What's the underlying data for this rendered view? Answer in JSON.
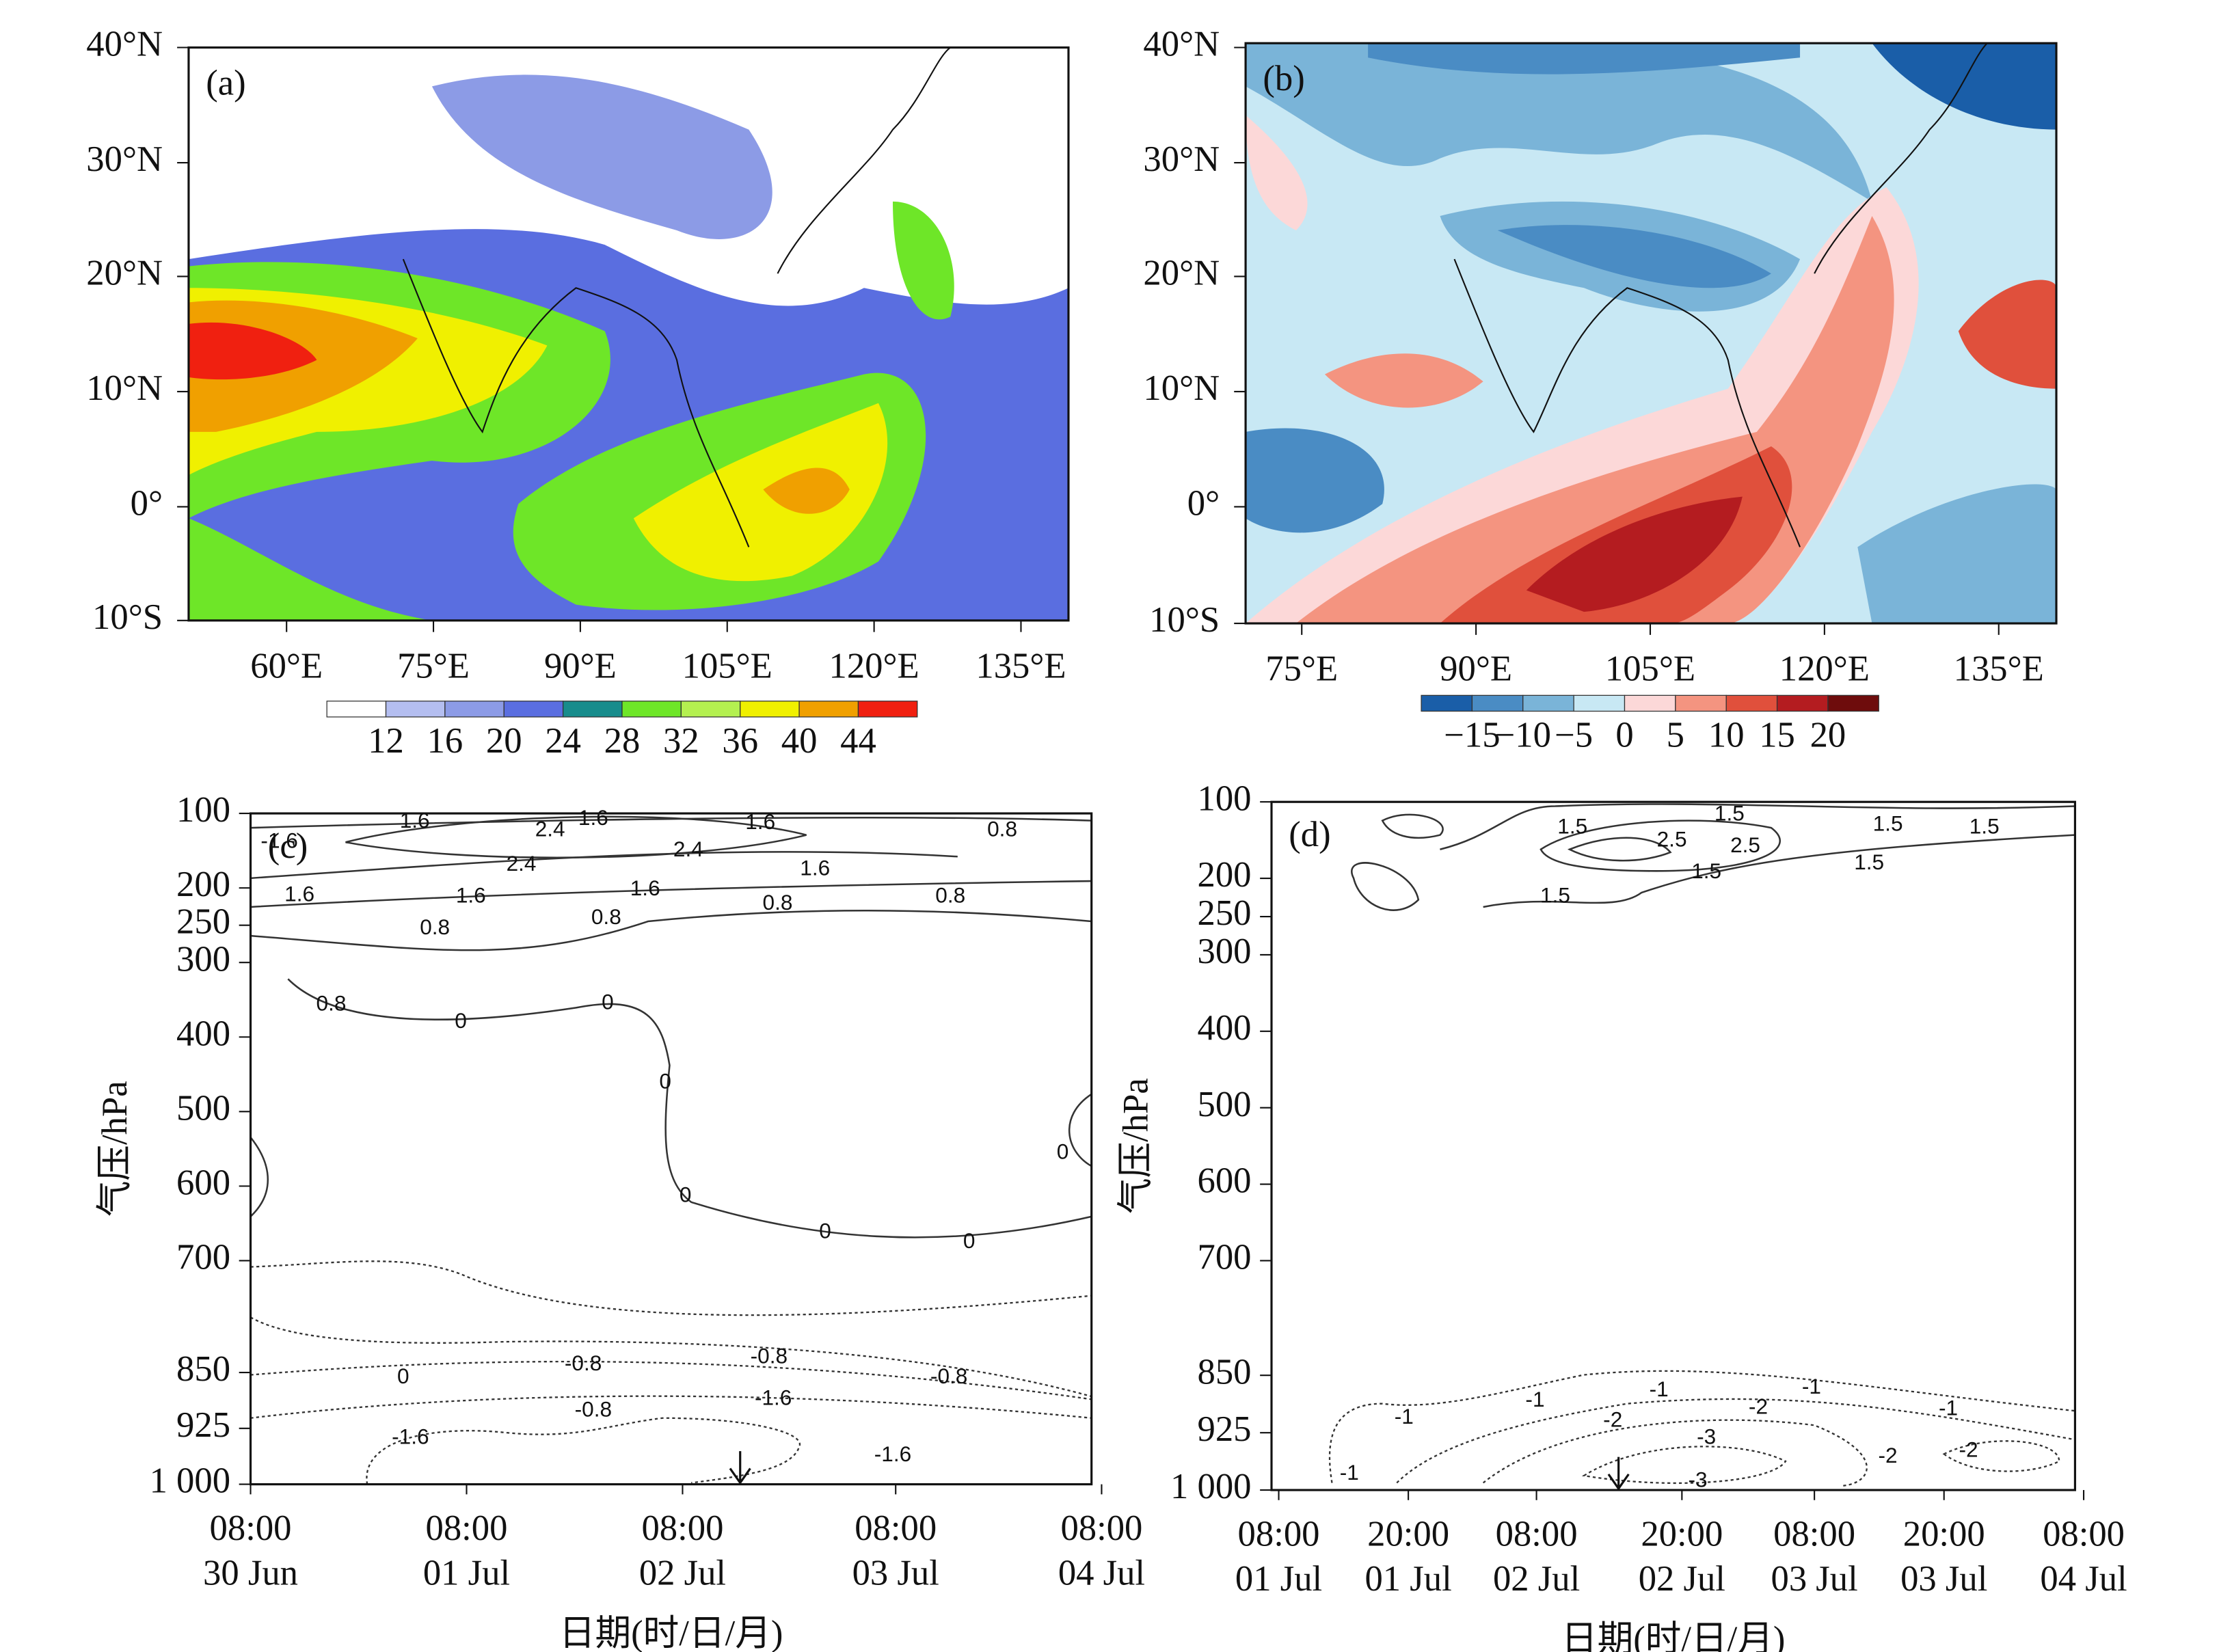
{
  "panels": [
    {
      "label": "(a)",
      "lat_ticks": [
        "40°N",
        "30°N",
        "20°N",
        "10°N",
        "0°",
        "10°S"
      ],
      "lon_ticks": [
        "60°E",
        "75°E",
        "90°E",
        "105°E",
        "120°E",
        "135°E"
      ],
      "colorbar": {
        "labels": [
          "12",
          "16",
          "20",
          "24",
          "28",
          "32",
          "36",
          "40",
          "44"
        ]
      }
    },
    {
      "label": "(b)",
      "lat_ticks": [
        "40°N",
        "30°N",
        "20°N",
        "10°N",
        "0°",
        "10°S"
      ],
      "lon_ticks": [
        "75°E",
        "90°E",
        "105°E",
        "120°E",
        "135°E"
      ],
      "colorbar": {
        "labels": [
          "−15",
          "−10",
          "−5",
          "0",
          "5",
          "10",
          "15",
          "20"
        ]
      }
    },
    {
      "label": "(c)",
      "y_label": "气压/hPa",
      "x_label": "日期(时/日/月)",
      "yticks": [
        100,
        200,
        250,
        300,
        400,
        500,
        600,
        700,
        850,
        925,
        {
          "value": 1000,
          "label": "1 000"
        }
      ],
      "xticks": [
        {
          "time": "08:00",
          "date": "30 Jun"
        },
        {
          "time": "08:00",
          "date": "01 Jul"
        },
        {
          "time": "08:00",
          "date": "02 Jul"
        },
        {
          "time": "08:00",
          "date": "03 Jul"
        },
        {
          "time": "08:00",
          "date": "04 Jul"
        }
      ],
      "contour_labels": [
        "1.6",
        "2.4",
        "1.6",
        "1.6",
        "0.8",
        "2.4",
        "2.4",
        "1.6",
        "1.6",
        "1.6",
        "1.6",
        "0.8",
        "0.8",
        "0.8",
        "0.8",
        "0.8",
        "0",
        "0",
        "0",
        "0",
        "0",
        "0",
        "0",
        "0",
        "-0.8",
        "-0.8",
        "-0.8",
        "-0.8",
        "-1.6",
        "-1.6",
        "-1.6",
        "-1.6"
      ]
    },
    {
      "label": "(d)",
      "y_label": "气压/hPa",
      "x_label": "日期(时/日/月)",
      "yticks": [
        100,
        200,
        250,
        300,
        400,
        500,
        600,
        700,
        850,
        925,
        {
          "value": 1000,
          "label": "1 000"
        }
      ],
      "xticks": [
        {
          "time": "08:00",
          "date": "01 Jul"
        },
        {
          "time": "20:00",
          "date": "01 Jul"
        },
        {
          "time": "08:00",
          "date": "02 Jul"
        },
        {
          "time": "20:00",
          "date": "02 Jul"
        },
        {
          "time": "08:00",
          "date": "03 Jul"
        },
        {
          "time": "20:00",
          "date": "03 Jul"
        },
        {
          "time": "08:00",
          "date": "04 Jul"
        }
      ],
      "contour_labels": [
        "1.5",
        "2.5",
        "1.5",
        "2.5",
        "1.5",
        "1.5",
        "1.5",
        "1.5",
        "1.5",
        "-1",
        "-1",
        "-1",
        "-2",
        "-1",
        "-1",
        "-2",
        "-3",
        "-3",
        "-2",
        "-2",
        "-1"
      ]
    }
  ]
}
